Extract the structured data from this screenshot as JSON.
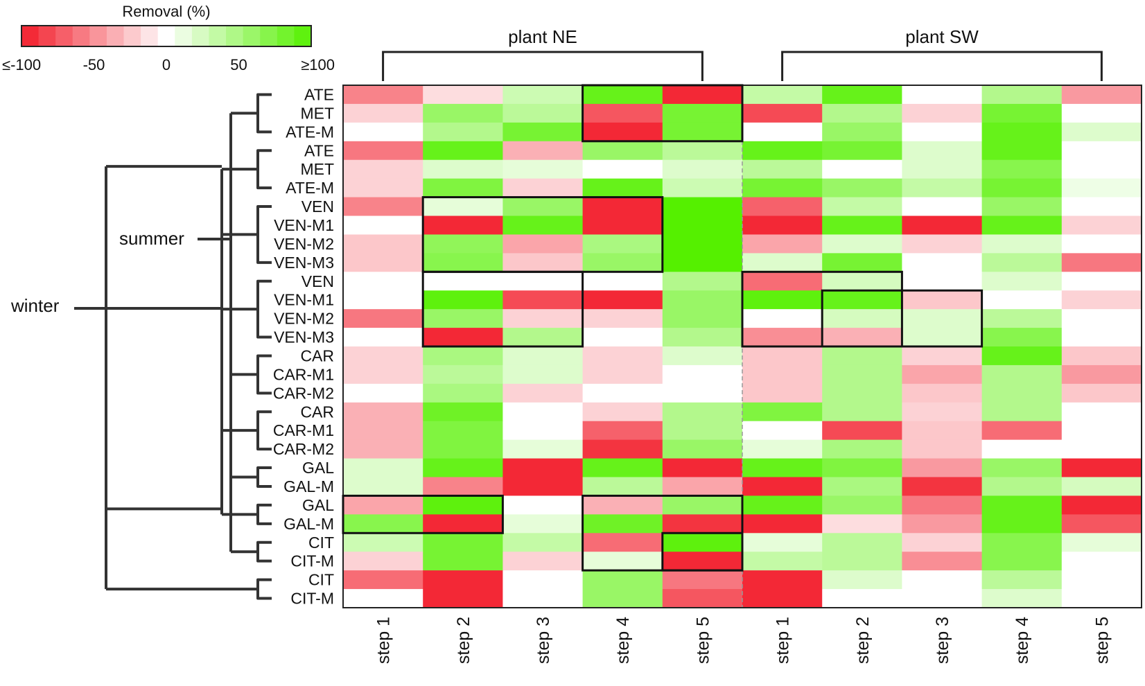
{
  "chart_data": {
    "type": "heatmap",
    "colorbar": {
      "title": "Removal (%)",
      "range": [
        -100,
        100
      ],
      "tick_labels": [
        "≤-100",
        "-50",
        "0",
        "50",
        "≥100"
      ],
      "tick_values": [
        -100,
        -50,
        0,
        50,
        100
      ],
      "neg_color": "#f21d2b",
      "zero_color": "#ffffff",
      "pos_color": "#55f000"
    },
    "plants": [
      "plant NE",
      "plant SW"
    ],
    "columns": [
      "step 1",
      "step 2",
      "step 3",
      "step 4",
      "step 5",
      "step 1",
      "step 2",
      "step 3",
      "step 4",
      "step 5"
    ],
    "rows": [
      "ATE",
      "MET",
      "ATE-M",
      "ATE",
      "MET",
      "ATE-M",
      "VEN",
      "VEN-M1",
      "VEN-M2",
      "VEN-M3",
      "VEN",
      "VEN-M1",
      "VEN-M2",
      "VEN-M3",
      "CAR",
      "CAR-M1",
      "CAR-M2",
      "CAR",
      "CAR-M1",
      "CAR-M2",
      "GAL",
      "GAL-M",
      "GAL",
      "GAL-M",
      "CIT",
      "CIT-M",
      "CIT",
      "CIT-M"
    ],
    "dendrogram_labels": {
      "summer": "summer",
      "winter": "winter"
    },
    "values": [
      [
        -55,
        -15,
        30,
        90,
        -95,
        35,
        90,
        0,
        45,
        -45
      ],
      [
        -20,
        60,
        40,
        -75,
        80,
        -80,
        45,
        -20,
        80,
        0
      ],
      [
        0,
        45,
        80,
        -95,
        80,
        0,
        60,
        0,
        90,
        20
      ],
      [
        -60,
        90,
        -35,
        60,
        40,
        90,
        80,
        20,
        90,
        0
      ],
      [
        -20,
        20,
        15,
        0,
        20,
        40,
        0,
        20,
        70,
        0
      ],
      [
        -20,
        75,
        -20,
        90,
        30,
        80,
        60,
        35,
        80,
        10
      ],
      [
        -55,
        15,
        60,
        -95,
        100,
        -70,
        35,
        0,
        60,
        0
      ],
      [
        0,
        -95,
        90,
        -95,
        100,
        -95,
        90,
        -95,
        90,
        -20
      ],
      [
        -25,
        65,
        -40,
        50,
        100,
        -40,
        20,
        -20,
        20,
        0
      ],
      [
        -25,
        70,
        -25,
        60,
        100,
        20,
        80,
        0,
        40,
        -60
      ],
      [
        0,
        0,
        0,
        0,
        45,
        -65,
        25,
        0,
        20,
        0
      ],
      [
        0,
        95,
        -80,
        -95,
        60,
        95,
        90,
        -25,
        0,
        -20
      ],
      [
        -60,
        60,
        -20,
        -20,
        60,
        0,
        25,
        20,
        40,
        0
      ],
      [
        0,
        -95,
        45,
        0,
        45,
        -50,
        -35,
        20,
        70,
        0
      ],
      [
        -20,
        50,
        20,
        -20,
        20,
        -25,
        45,
        -20,
        90,
        -25
      ],
      [
        -20,
        40,
        20,
        -20,
        0,
        -25,
        45,
        -40,
        45,
        -45
      ],
      [
        0,
        50,
        -20,
        0,
        0,
        -25,
        45,
        -25,
        45,
        -25
      ],
      [
        -35,
        85,
        0,
        -20,
        45,
        75,
        45,
        -20,
        45,
        0
      ],
      [
        -35,
        75,
        0,
        -70,
        45,
        0,
        -80,
        -25,
        -65,
        0
      ],
      [
        -35,
        75,
        15,
        -90,
        60,
        15,
        50,
        -25,
        0,
        0
      ],
      [
        20,
        90,
        -95,
        90,
        -95,
        90,
        75,
        -45,
        60,
        -95
      ],
      [
        20,
        -55,
        -95,
        40,
        -40,
        -95,
        50,
        -90,
        45,
        25
      ],
      [
        -40,
        95,
        0,
        -35,
        60,
        90,
        60,
        -60,
        90,
        -95
      ],
      [
        70,
        -95,
        15,
        85,
        -90,
        -95,
        -15,
        -45,
        90,
        -75
      ],
      [
        30,
        80,
        35,
        -65,
        95,
        15,
        40,
        -20,
        70,
        15
      ],
      [
        -20,
        80,
        -20,
        15,
        -95,
        35,
        40,
        -50,
        70,
        0
      ],
      [
        -65,
        -95,
        0,
        60,
        -60,
        -95,
        20,
        0,
        40,
        0
      ],
      [
        0,
        -95,
        0,
        60,
        -75,
        -95,
        0,
        0,
        20,
        0
      ]
    ],
    "highlight_boxes": [
      {
        "rows": [
          0,
          2
        ],
        "cols": [
          3,
          4
        ]
      },
      {
        "rows": [
          6,
          9
        ],
        "cols": [
          1,
          3
        ]
      },
      {
        "rows": [
          10,
          13
        ],
        "cols": [
          1,
          2
        ]
      },
      {
        "rows": [
          10,
          13
        ],
        "cols": [
          5,
          6
        ]
      },
      {
        "rows": [
          11,
          13
        ],
        "cols": [
          6,
          7
        ]
      },
      {
        "rows": [
          22,
          23
        ],
        "cols": [
          0,
          1
        ]
      },
      {
        "rows": [
          22,
          25
        ],
        "cols": [
          3,
          4
        ]
      },
      {
        "rows": [
          24,
          25
        ],
        "cols": [
          4,
          4
        ]
      }
    ]
  }
}
